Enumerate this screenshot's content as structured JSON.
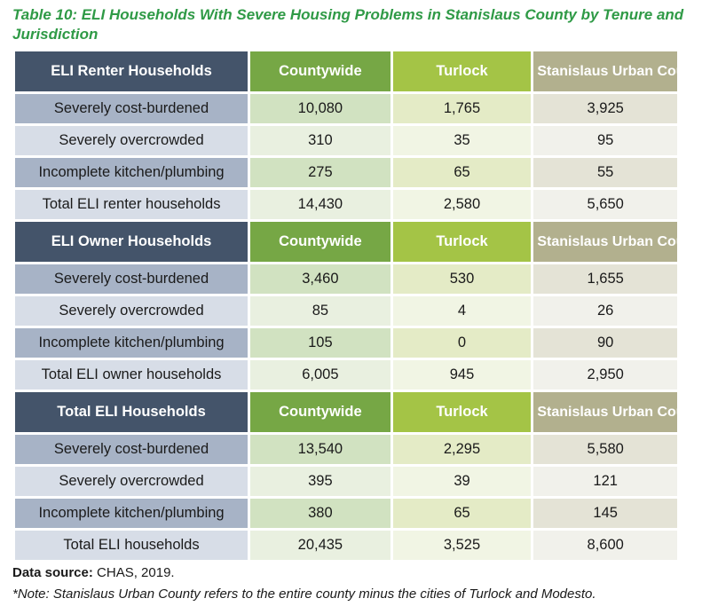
{
  "caption": "Table 10: ELI Households With Severe Housing Problems in Stanislaus County by Tenure and Jurisdiction",
  "columns": {
    "countywide": "Countywide",
    "turlock": "Turlock",
    "urban_renter": "Stanislaus Urban County*",
    "urban": "Stanislaus Urban County"
  },
  "sections": [
    {
      "header": "ELI Renter Households",
      "rows": [
        {
          "label": "Severely cost-burdened",
          "countywide": "10,080",
          "turlock": "1,765",
          "urban": "3,925"
        },
        {
          "label": "Severely overcrowded",
          "countywide": "310",
          "turlock": "35",
          "urban": "95"
        },
        {
          "label": "Incomplete kitchen/plumbing",
          "countywide": "275",
          "turlock": "65",
          "urban": "55"
        },
        {
          "label": "Total ELI renter households",
          "countywide": "14,430",
          "turlock": "2,580",
          "urban": "5,650"
        }
      ]
    },
    {
      "header": "ELI Owner Households",
      "rows": [
        {
          "label": "Severely cost-burdened",
          "countywide": "3,460",
          "turlock": "530",
          "urban": "1,655"
        },
        {
          "label": "Severely overcrowded",
          "countywide": "85",
          "turlock": "4",
          "urban": "26"
        },
        {
          "label": "Incomplete kitchen/plumbing",
          "countywide": "105",
          "turlock": "0",
          "urban": "90"
        },
        {
          "label": "Total ELI owner households",
          "countywide": "6,005",
          "turlock": "945",
          "urban": "2,950"
        }
      ]
    },
    {
      "header": "Total ELI Households",
      "rows": [
        {
          "label": "Severely cost-burdened",
          "countywide": "13,540",
          "turlock": "2,295",
          "urban": "5,580"
        },
        {
          "label": "Severely overcrowded",
          "countywide": "395",
          "turlock": "39",
          "urban": "121"
        },
        {
          "label": "Incomplete kitchen/plumbing",
          "countywide": "380",
          "turlock": "65",
          "urban": "145"
        },
        {
          "label": "Total ELI households",
          "countywide": "20,435",
          "turlock": "3,525",
          "urban": "8,600"
        }
      ]
    }
  ],
  "footnotes": {
    "source_label": "Data source:",
    "source_value": "CHAS, 2019.",
    "note": "*Note: Stanislaus Urban County refers to the entire county minus the cities of Turlock and Modesto."
  },
  "colors": {
    "caption": "#2f9a46",
    "header_label": "#44546a",
    "header_countywide": "#76a745",
    "header_turlock": "#a4c446",
    "header_urban": "#b2b08e"
  }
}
